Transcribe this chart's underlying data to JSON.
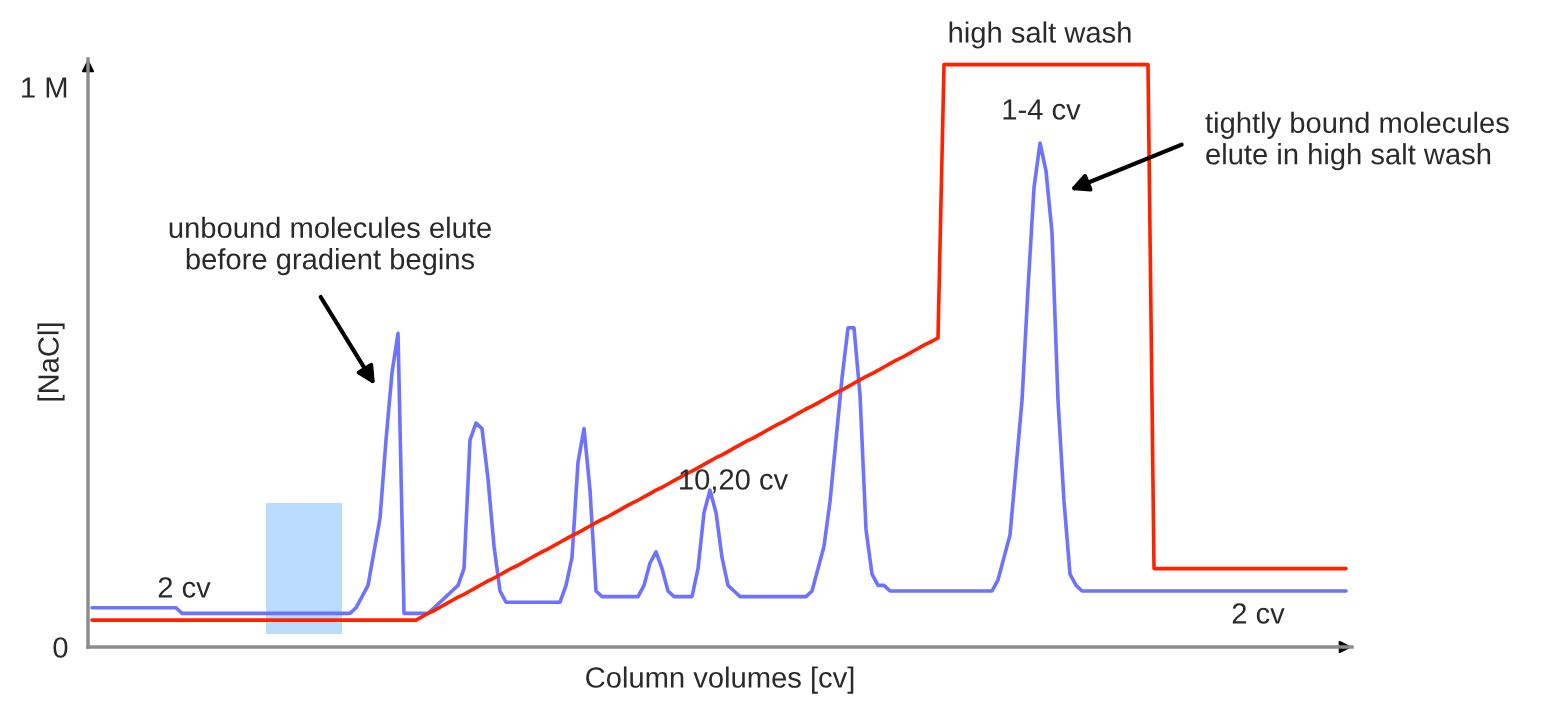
{
  "chart_data": {
    "type": "line",
    "xlabel": "Column volumes [cv]",
    "ylabel": "[NaCl]",
    "categories": [
      null,
      null,
      null,
      null,
      null,
      null,
      null,
      null,
      null,
      null,
      null,
      null,
      null,
      null,
      null,
      null,
      null,
      null,
      null,
      null,
      null,
      null,
      null,
      null,
      null,
      null,
      null,
      null,
      null,
      null,
      null,
      null,
      null,
      null,
      null,
      null,
      null,
      null,
      null,
      null,
      null,
      null,
      null,
      null,
      null,
      null,
      null,
      null,
      null,
      null,
      null,
      null,
      null,
      null,
      null,
      null,
      null,
      null,
      null,
      null,
      null,
      null,
      null,
      null,
      null,
      null,
      null,
      null,
      null,
      null,
      null,
      null,
      null,
      null,
      null,
      null,
      null,
      null,
      null,
      null,
      null,
      null,
      null,
      null,
      null,
      null,
      null,
      null,
      null,
      null,
      null,
      null,
      null,
      null,
      null,
      null,
      null,
      null,
      null,
      null,
      null,
      null,
      null,
      null,
      null,
      null,
      null,
      null,
      null,
      null,
      null,
      null,
      null,
      null,
      null,
      null,
      null,
      null,
      null,
      null,
      null,
      null,
      null,
      null,
      null,
      null,
      null,
      null,
      null,
      null,
      null,
      null,
      null,
      null,
      null,
      null,
      null,
      null,
      null,
      null,
      null,
      null,
      null,
      null,
      null,
      null,
      null,
      null,
      null,
      null,
      null,
      null,
      null,
      null,
      null,
      null,
      null,
      null,
      null,
      null,
      null,
      null,
      null,
      null,
      null,
      null,
      null,
      null,
      null,
      null,
      null,
      null,
      null,
      null,
      null,
      null,
      null,
      null,
      null,
      null,
      null,
      null,
      null,
      null,
      null,
      null,
      null,
      null,
      null,
      null,
      null,
      null,
      null,
      null,
      null,
      null,
      null,
      null,
      null,
      null,
      null,
      null,
      null,
      null,
      null,
      null,
      null,
      null,
      null,
      null
    ],
    "ylim": [
      0,
      1.05
    ],
    "yticks": [
      0,
      {
        "value": 1,
        "label": "1 M"
      }
    ],
    "tick_labels": "y",
    "series": [
      {
        "color": "#6e73ff",
        "values": [
          0.07,
          0.07,
          0.07,
          0.07,
          0.07,
          0.07,
          0.07,
          0.07,
          0.07,
          0.07,
          0.07,
          0.07,
          0.07,
          0.07,
          0.07,
          0.06,
          0.06,
          0.06,
          0.06,
          0.06,
          0.06,
          0.06,
          0.06,
          0.06,
          0.06,
          0.06,
          0.06,
          0.06,
          0.06,
          0.06,
          0.06,
          0.06,
          0.06,
          0.06,
          0.06,
          0.06,
          0.06,
          0.06,
          0.06,
          0.06,
          0.06,
          0.06,
          0.06,
          0.06,
          0.07,
          0.09,
          0.11,
          0.17,
          0.23,
          0.37,
          0.49,
          0.56,
          0.06,
          0.06,
          0.06,
          0.06,
          0.06,
          0.07,
          0.08,
          0.09,
          0.1,
          0.11,
          0.14,
          0.37,
          0.4,
          0.39,
          0.3,
          0.18,
          0.1,
          0.08,
          0.08,
          0.08,
          0.08,
          0.08,
          0.08,
          0.08,
          0.08,
          0.08,
          0.08,
          0.11,
          0.16,
          0.33,
          0.39,
          0.28,
          0.1,
          0.09,
          0.09,
          0.09,
          0.09,
          0.09,
          0.09,
          0.09,
          0.11,
          0.15,
          0.17,
          0.14,
          0.1,
          0.09,
          0.09,
          0.09,
          0.09,
          0.14,
          0.24,
          0.28,
          0.24,
          0.16,
          0.11,
          0.1,
          0.09,
          0.09,
          0.09,
          0.09,
          0.09,
          0.09,
          0.09,
          0.09,
          0.09,
          0.09,
          0.09,
          0.09,
          0.1,
          0.14,
          0.18,
          0.26,
          0.37,
          0.48,
          0.57,
          0.57,
          0.45,
          0.21,
          0.13,
          0.11,
          0.11,
          0.1,
          0.1,
          0.1,
          0.1,
          0.1,
          0.1,
          0.1,
          0.1,
          0.1,
          0.1,
          0.1,
          0.1,
          0.1,
          0.1,
          0.1,
          0.1,
          0.1,
          0.1,
          0.12,
          0.16,
          0.2,
          0.32,
          0.44,
          0.64,
          0.82,
          0.9,
          0.85,
          0.74,
          0.44,
          0.26,
          0.13,
          0.11,
          0.1,
          0.1,
          0.1,
          0.1,
          0.1,
          0.1,
          0.1,
          0.1,
          0.1,
          0.1,
          0.1,
          0.1,
          0.1,
          0.1,
          0.1,
          0.1,
          0.1,
          0.1,
          0.1,
          0.1,
          0.1,
          0.1,
          0.1,
          0.1,
          0.1,
          0.1,
          0.1,
          0.1,
          0.1,
          0.1,
          0.1,
          0.1,
          0.1,
          0.1,
          0.1,
          0.1,
          0.1,
          0.1,
          0.1,
          0.1,
          0.1,
          0.1,
          0.1,
          0.1,
          0.1
        ]
      },
      {
        "color": "#ff2200",
        "values": [
          0.048,
          0.048,
          0.048,
          0.048,
          0.048,
          0.048,
          0.048,
          0.048,
          0.048,
          0.048,
          0.048,
          0.048,
          0.048,
          0.048,
          0.048,
          0.048,
          0.048,
          0.048,
          0.048,
          0.048,
          0.048,
          0.048,
          0.048,
          0.048,
          0.048,
          0.048,
          0.048,
          0.048,
          0.048,
          0.048,
          0.048,
          0.048,
          0.048,
          0.048,
          0.048,
          0.048,
          0.048,
          0.048,
          0.048,
          0.048,
          0.048,
          0.048,
          0.048,
          0.048,
          0.048,
          0.048,
          0.048,
          0.048,
          0.048,
          0.048,
          0.048,
          0.048,
          0.048,
          0.048,
          0.048,
          0.054,
          0.06,
          0.065,
          0.071,
          0.077,
          0.083,
          0.089,
          0.094,
          0.1,
          0.106,
          0.112,
          0.118,
          0.123,
          0.129,
          0.135,
          0.141,
          0.146,
          0.152,
          0.158,
          0.164,
          0.17,
          0.175,
          0.181,
          0.187,
          0.193,
          0.199,
          0.204,
          0.21,
          0.216,
          0.222,
          0.228,
          0.233,
          0.239,
          0.245,
          0.251,
          0.257,
          0.262,
          0.268,
          0.274,
          0.28,
          0.285,
          0.291,
          0.297,
          0.303,
          0.309,
          0.314,
          0.32,
          0.326,
          0.332,
          0.338,
          0.343,
          0.349,
          0.355,
          0.361,
          0.367,
          0.372,
          0.378,
          0.384,
          0.39,
          0.396,
          0.401,
          0.407,
          0.413,
          0.419,
          0.425,
          0.43,
          0.436,
          0.442,
          0.448,
          0.454,
          0.459,
          0.465,
          0.471,
          0.477,
          0.483,
          0.488,
          0.494,
          0.5,
          0.506,
          0.512,
          0.517,
          0.523,
          0.529,
          0.535,
          0.541,
          0.546,
          0.552,
          1.04,
          1.04,
          1.04,
          1.04,
          1.04,
          1.04,
          1.04,
          1.04,
          1.04,
          1.04,
          1.04,
          1.04,
          1.04,
          1.04,
          1.04,
          1.04,
          1.04,
          1.04,
          1.04,
          1.04,
          1.04,
          1.04,
          1.04,
          1.04,
          1.04,
          1.04,
          1.04,
          1.04,
          1.04,
          1.04,
          1.04,
          1.04,
          1.04,
          1.04,
          1.04,
          0.14,
          0.14,
          0.14,
          0.14,
          0.14,
          0.14,
          0.14,
          0.14,
          0.14,
          0.14,
          0.14,
          0.14,
          0.14,
          0.14,
          0.14,
          0.14,
          0.14,
          0.14,
          0.14,
          0.14,
          0.14,
          0.14,
          0.14,
          0.14,
          0.14,
          0.14,
          0.14,
          0.14,
          0.14,
          0.14,
          0.14,
          0.14,
          0.14
        ]
      }
    ],
    "annotations": [
      "unbound molecules elute\nbefore gradient begins",
      "2 cv",
      "10,20 cv",
      "high salt wash",
      "1-4 cv",
      "tightly bound molecules\nelute in high salt wash",
      "2 cv"
    ]
  }
}
